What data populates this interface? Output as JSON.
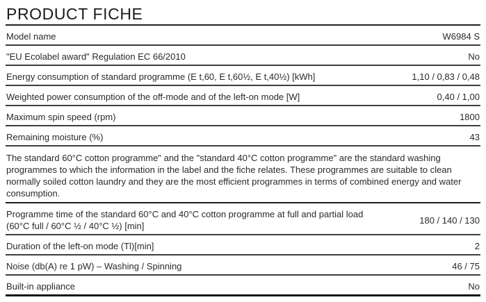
{
  "title": "PRODUCT FICHE",
  "rows": [
    {
      "label": "Model name",
      "value": "W6984 S"
    },
    {
      "label": "\"EU Ecolabel award\" Regulation EC 66/2010",
      "value": "No"
    },
    {
      "label": "Energy consumption of standard programme (E t,60, E t,60½, E t,40½) [kWh]",
      "value": "1,10 / 0,83 / 0,48"
    },
    {
      "label": "Weighted power consumption of the off-mode and of the left-on mode [W]",
      "value": "0,40 / 1,00"
    },
    {
      "label": "Maximum spin speed (rpm)",
      "value": "1800"
    },
    {
      "label": "Remaining moisture (%)",
      "value": "43"
    }
  ],
  "note": "The standard 60°C cotton programme\" and the \"standard 40°C cotton programme\" are the standard washing programmes to which the information in the label and the fiche relates. These programmes are suitable to clean normally soiled cotton laundry and they are the most efficient programmes in terms of combined energy and water consumption.",
  "rows2": [
    {
      "label": "Programme time of the standard 60°C and 40°C cotton programme at full and partial load (60°C full / 60°C ½ / 40°C ½) [min]",
      "value": "180 / 140 / 130"
    },
    {
      "label": "Duration of the left-on mode (Tl)[min]",
      "value": "2"
    },
    {
      "label": "Noise (db(A) re 1 pW) – Washing / Spinning",
      "value": "46 / 75"
    },
    {
      "label": "Built-in appliance",
      "value": "No"
    }
  ]
}
